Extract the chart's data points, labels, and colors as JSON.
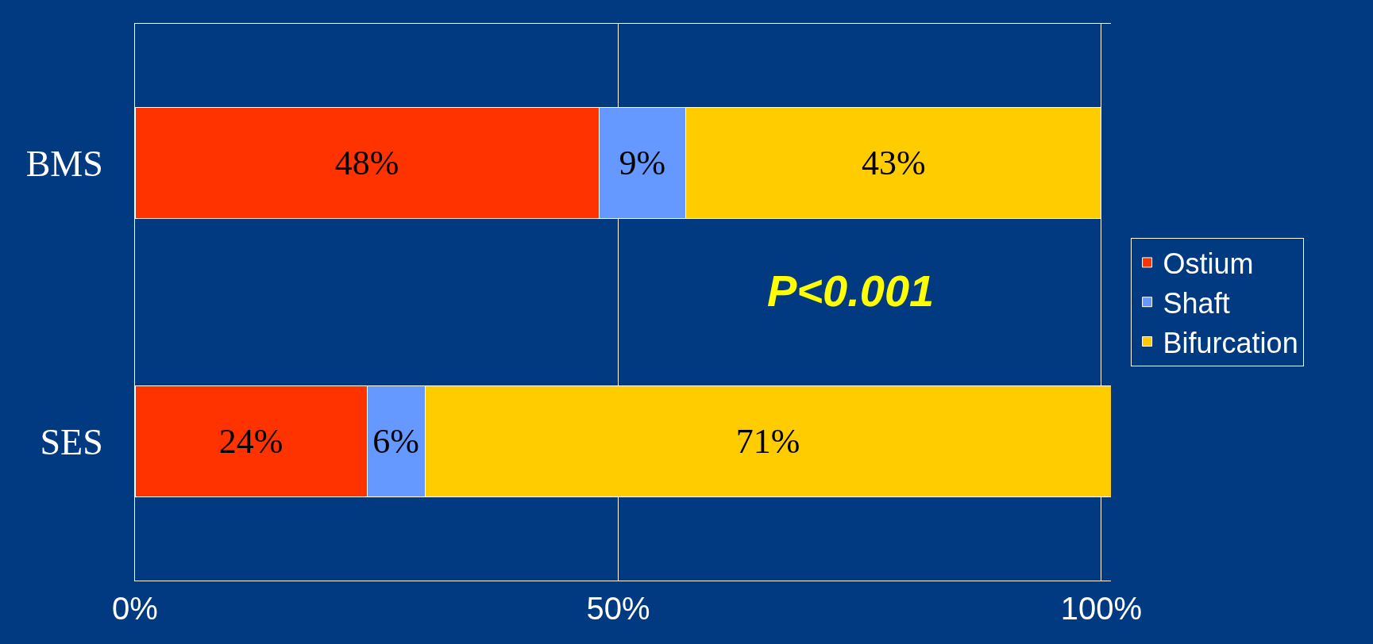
{
  "chart_data": {
    "type": "bar",
    "orientation": "horizontal",
    "stacked": true,
    "categories": [
      "BMS",
      "SES"
    ],
    "series": [
      {
        "name": "Ostium",
        "color": "#ff3300",
        "values": [
          48,
          24
        ],
        "value_labels": [
          "48%",
          "24%"
        ]
      },
      {
        "name": "Shaft",
        "color": "#6699ff",
        "values": [
          9,
          6
        ],
        "value_labels": [
          "9%",
          "6%"
        ]
      },
      {
        "name": "Bifurcation",
        "color": "#ffcc00",
        "values": [
          43,
          71
        ],
        "value_labels": [
          "43%",
          "71%"
        ]
      }
    ],
    "xlim": [
      0,
      101
    ],
    "xticks": [
      {
        "value": 0,
        "label": "0%"
      },
      {
        "value": 50,
        "label": "50%"
      },
      {
        "value": 100,
        "label": "100%"
      }
    ],
    "grid": "x",
    "legend": "right",
    "annotations": [
      "P<0.001"
    ]
  }
}
